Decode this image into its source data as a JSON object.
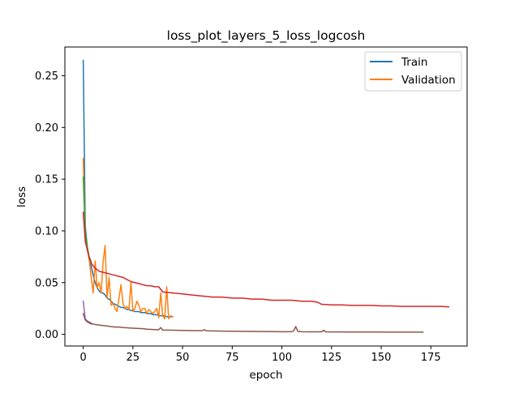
{
  "chart_data": {
    "type": "line",
    "title": "loss_plot_layers_5_loss_logcosh",
    "xlabel": "epoch",
    "ylabel": "loss",
    "xlim": [
      -9.25,
      193.25
    ],
    "ylim": [
      -0.0113,
      0.2778
    ],
    "xticks": [
      0,
      25,
      50,
      75,
      100,
      125,
      150,
      175
    ],
    "yticks": [
      0.0,
      0.05,
      0.1,
      0.15,
      0.2,
      0.25
    ],
    "ytick_labels": [
      "0.00",
      "0.05",
      "0.10",
      "0.15",
      "0.20",
      "0.25"
    ],
    "grid": false,
    "legend_position": "top-right",
    "legend": [
      {
        "label": "Train",
        "color": "#1f77b4"
      },
      {
        "label": "Validation",
        "color": "#ff7f0e"
      }
    ],
    "series": [
      {
        "name": "Train",
        "color": "#1f77b4",
        "x": [
          0,
          1,
          2,
          3,
          4,
          5,
          6,
          7,
          8,
          9,
          10,
          11,
          12,
          13,
          14,
          15,
          16,
          17,
          18,
          19,
          20,
          21,
          22,
          23,
          24,
          25,
          26,
          27,
          28,
          29,
          30,
          31,
          32,
          33,
          34,
          35,
          36,
          37,
          38,
          39,
          40,
          41,
          42,
          43,
          44,
          45
        ],
        "y": [
          0.265,
          0.105,
          0.085,
          0.072,
          0.066,
          0.057,
          0.05,
          0.045,
          0.042,
          0.04,
          0.04,
          0.038,
          0.035,
          0.034,
          0.032,
          0.03,
          0.029,
          0.028,
          0.027,
          0.026,
          0.026,
          0.025,
          0.024,
          0.024,
          0.023,
          0.023,
          0.022,
          0.022,
          0.022,
          0.021,
          0.021,
          0.021,
          0.02,
          0.02,
          0.02,
          0.019,
          0.019,
          0.019,
          0.018,
          0.018,
          0.018,
          0.018,
          0.017,
          0.017,
          0.017,
          0.017
        ]
      },
      {
        "color": "#ff7f0e",
        "x": [
          0,
          1,
          2,
          3,
          4,
          5,
          6,
          7,
          8,
          9,
          10,
          11,
          12,
          13,
          14,
          15,
          16,
          17,
          18,
          19,
          20,
          21,
          22,
          23,
          24,
          25,
          26,
          27,
          28,
          29,
          30,
          31,
          32,
          33,
          34,
          35,
          36,
          37,
          38,
          39,
          40,
          41,
          42,
          43,
          44,
          45
        ],
        "y": [
          0.17,
          0.1,
          0.082,
          0.073,
          0.055,
          0.04,
          0.071,
          0.045,
          0.05,
          0.04,
          0.07,
          0.086,
          0.035,
          0.055,
          0.028,
          0.03,
          0.025,
          0.022,
          0.035,
          0.048,
          0.03,
          0.025,
          0.027,
          0.024,
          0.05,
          0.022,
          0.025,
          0.032,
          0.028,
          0.022,
          0.025,
          0.025,
          0.02,
          0.024,
          0.022,
          0.02,
          0.022,
          0.025,
          0.016,
          0.04,
          0.018,
          0.015,
          0.046,
          0.015,
          0.018,
          0.017
        ]
      },
      {
        "color": "#2ca02c",
        "x": [
          0,
          1,
          2,
          3,
          4
        ],
        "y": [
          0.152,
          0.1,
          0.085,
          0.075,
          0.07
        ]
      },
      {
        "color": "#d62728",
        "x": [
          0,
          1,
          2,
          3,
          4,
          5,
          6,
          8,
          10,
          12,
          14,
          16,
          18,
          20,
          22,
          24,
          26,
          28,
          30,
          32,
          34,
          36,
          38,
          40,
          45,
          50,
          55,
          60,
          65,
          70,
          75,
          80,
          85,
          90,
          95,
          100,
          105,
          110,
          115,
          118,
          120,
          125,
          130,
          135,
          140,
          145,
          150,
          155,
          160,
          165,
          170,
          175,
          180,
          184
        ],
        "y": [
          0.118,
          0.09,
          0.082,
          0.074,
          0.069,
          0.066,
          0.064,
          0.061,
          0.06,
          0.059,
          0.058,
          0.057,
          0.056,
          0.055,
          0.053,
          0.051,
          0.05,
          0.049,
          0.048,
          0.047,
          0.047,
          0.046,
          0.046,
          0.041,
          0.04,
          0.039,
          0.038,
          0.037,
          0.036,
          0.036,
          0.035,
          0.035,
          0.034,
          0.034,
          0.033,
          0.033,
          0.033,
          0.032,
          0.032,
          0.031,
          0.029,
          0.0285,
          0.0285,
          0.028,
          0.028,
          0.028,
          0.0275,
          0.0275,
          0.027,
          0.027,
          0.027,
          0.027,
          0.027,
          0.0265
        ]
      },
      {
        "color": "#9467bd",
        "x": [
          0,
          1,
          2,
          3,
          4
        ],
        "y": [
          0.032,
          0.015,
          0.013,
          0.012,
          0.011
        ]
      },
      {
        "color": "#8c564b",
        "x": [
          0,
          1,
          2,
          3,
          4,
          5,
          6,
          8,
          10,
          12,
          14,
          16,
          18,
          20,
          22,
          24,
          26,
          28,
          30,
          32,
          34,
          36,
          38,
          39,
          40,
          45,
          50,
          55,
          60,
          61,
          62,
          65,
          70,
          75,
          80,
          85,
          90,
          95,
          100,
          105,
          106,
          107,
          108,
          110,
          115,
          120,
          121,
          122,
          125,
          130,
          135,
          140,
          145,
          150,
          155,
          160,
          165,
          170,
          171
        ],
        "y": [
          0.02,
          0.014,
          0.012,
          0.011,
          0.01,
          0.01,
          0.0095,
          0.009,
          0.0085,
          0.008,
          0.0075,
          0.007,
          0.007,
          0.0065,
          0.0063,
          0.006,
          0.0058,
          0.0056,
          0.0054,
          0.005,
          0.0048,
          0.0046,
          0.0044,
          0.0065,
          0.0042,
          0.004,
          0.0038,
          0.0036,
          0.0035,
          0.0045,
          0.0034,
          0.0033,
          0.0031,
          0.003,
          0.0029,
          0.0028,
          0.0027,
          0.0026,
          0.0025,
          0.0025,
          0.0035,
          0.0075,
          0.0028,
          0.0025,
          0.0024,
          0.0024,
          0.004,
          0.0024,
          0.0023,
          0.0023,
          0.0022,
          0.0022,
          0.0022,
          0.0022,
          0.0021,
          0.0021,
          0.0021,
          0.0021,
          0.0021
        ]
      }
    ]
  }
}
